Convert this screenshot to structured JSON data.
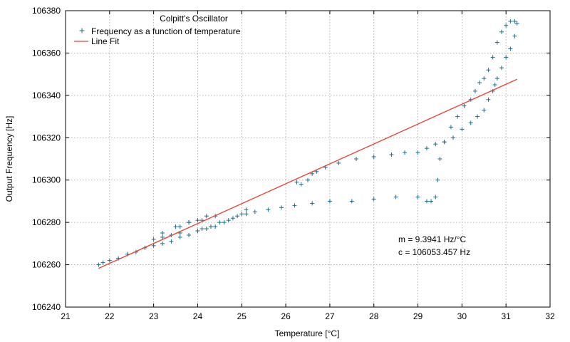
{
  "chart_data": {
    "type": "scatter",
    "title": "Colpitt's Oscillator",
    "xlabel": "Temperature [°C]",
    "ylabel": "Output Frequency [Hz]",
    "xlim": [
      21,
      32
    ],
    "ylim": [
      106240,
      106380
    ],
    "xticks": [
      "21",
      "22",
      "23",
      "24",
      "25",
      "26",
      "27",
      "28",
      "29",
      "30",
      "31",
      "32"
    ],
    "yticks": [
      "106240",
      "106260",
      "106280",
      "106300",
      "106320",
      "106340",
      "106360",
      "106380"
    ],
    "grid": true,
    "legend_position": "top-left",
    "series": [
      {
        "name": "Frequency as a function of temperature",
        "kind": "points",
        "marker": "plus",
        "color": "#1f6b8a",
        "x": [
          21.75,
          21.85,
          22.0,
          22.2,
          22.4,
          22.6,
          22.8,
          23.0,
          23.2,
          23.4,
          23.6,
          23.8,
          24.0,
          24.1,
          24.3,
          24.5,
          24.7,
          24.9,
          25.1,
          25.3,
          25.6,
          25.9,
          26.2,
          26.6,
          27.0,
          27.5,
          28.0,
          28.5,
          29.0,
          29.2,
          29.3,
          29.4,
          29.45,
          29.5,
          29.6,
          29.75,
          29.9,
          30.05,
          30.2,
          30.3,
          30.4,
          30.5,
          30.6,
          30.7,
          30.8,
          30.9,
          31.0,
          31.1,
          31.2,
          31.25,
          31.2,
          31.1,
          31.0,
          30.9,
          30.8,
          30.75,
          30.7,
          30.6,
          30.5,
          30.35,
          30.2,
          30.0,
          29.8,
          29.6,
          29.4,
          29.2,
          29.0,
          28.7,
          28.4,
          28.0,
          27.6,
          27.2,
          26.9,
          26.7,
          26.6,
          26.5,
          26.35,
          26.25,
          24.0,
          24.2,
          24.4,
          24.6,
          24.8,
          25.0,
          25.1,
          23.6,
          23.4,
          23.2,
          23.0,
          23.2,
          23.5,
          23.8,
          24.0,
          24.2,
          24.4,
          24.1,
          23.8,
          23.6
        ],
        "y": [
          106260,
          106261,
          106262,
          106263,
          106265,
          106266,
          106268,
          106269,
          106270,
          106271,
          106273,
          106274,
          106276,
          106277,
          106278,
          106280,
          106281,
          106283,
          106284,
          106285,
          106286,
          106287,
          106288,
          106289,
          106290,
          106290,
          106291,
          106292,
          106292,
          106290,
          106290,
          106292,
          106300,
          106310,
          106318,
          106325,
          106330,
          106335,
          106338,
          106342,
          106346,
          106348,
          106352,
          106358,
          106365,
          106370,
          106373,
          106375,
          106375,
          106374,
          106368,
          106362,
          106358,
          106353,
          106348,
          106345,
          106342,
          106338,
          106333,
          106330,
          106327,
          106324,
          106320,
          106318,
          106317,
          106315,
          106313,
          106313,
          106312,
          106311,
          106310,
          106308,
          106306,
          106304,
          106303,
          106300,
          106298,
          106299,
          106276,
          106277,
          106278,
          106280,
          106282,
          106284,
          106286,
          106275,
          106274,
          106273,
          106272,
          106275,
          106278,
          106280,
          106281,
          106283,
          106283,
          106281,
          106280,
          106278
        ]
      },
      {
        "name": "Line Fit",
        "kind": "line",
        "color": "#e8463a",
        "x": [
          21.75,
          31.25
        ],
        "y": [
          106258.3,
          106347.6
        ]
      }
    ],
    "annotations": [
      "m = 9.3941 Hz/°C",
      "c = 106053.457 Hz"
    ],
    "colors": {
      "grid": "#a0a0a0",
      "frame": "#000000"
    }
  }
}
